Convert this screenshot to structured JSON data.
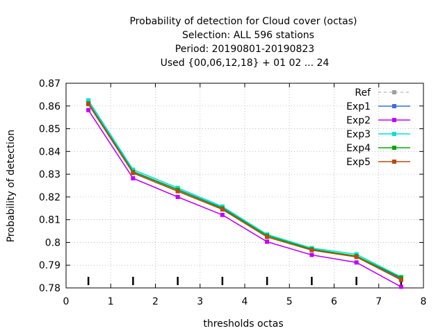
{
  "chart_data": {
    "type": "line",
    "title_lines": [
      "Probability of detection  for Cloud cover (octas)",
      "Selection: ALL    596 stations",
      "Period: 20190801-20190823",
      "Used {00,06,12,18} + 01 02 ... 24"
    ],
    "xlabel": "thresholds octas",
    "ylabel": "Probability of detection",
    "xlim": [
      0,
      8
    ],
    "ylim": [
      0.78,
      0.87
    ],
    "x_ticks": [
      0,
      1,
      2,
      3,
      4,
      5,
      6,
      7,
      8
    ],
    "x_tick_labels": [
      "0",
      "1",
      "2",
      "3",
      "4",
      "5",
      "6",
      "7",
      "8"
    ],
    "y_ticks": [
      0.78,
      0.79,
      0.8,
      0.81,
      0.82,
      0.83,
      0.84,
      0.85,
      0.86,
      0.87
    ],
    "y_tick_labels": [
      "0.78",
      "0.79",
      "0.8",
      "0.81",
      "0.82",
      "0.83",
      "0.84",
      "0.85",
      "0.86",
      "0.87"
    ],
    "grid": true,
    "legend_position": "top-right",
    "x": [
      0.5,
      1.5,
      2.5,
      3.5,
      4.5,
      5.5,
      6.5,
      7.5
    ],
    "series": [
      {
        "name": "Ref",
        "color": "#a0a0a0",
        "dashed": true,
        "values": [
          0.8615,
          0.8312,
          0.8233,
          0.8152,
          0.803,
          0.797,
          0.794,
          0.784
        ]
      },
      {
        "name": "Exp1",
        "color": "#3a6fd8",
        "dashed": false,
        "values": [
          0.8615,
          0.8312,
          0.8233,
          0.8152,
          0.803,
          0.797,
          0.794,
          0.784
        ]
      },
      {
        "name": "Exp2",
        "color": "#c000ff",
        "dashed": false,
        "values": [
          0.8582,
          0.8282,
          0.82,
          0.8121,
          0.8003,
          0.7945,
          0.7912,
          0.7805
        ]
      },
      {
        "name": "Exp3",
        "color": "#00e0d8",
        "dashed": false,
        "values": [
          0.8625,
          0.832,
          0.824,
          0.8158,
          0.8035,
          0.7975,
          0.7948,
          0.7848
        ]
      },
      {
        "name": "Exp4",
        "color": "#00aa00",
        "dashed": false,
        "values": [
          0.8612,
          0.831,
          0.8231,
          0.815,
          0.803,
          0.797,
          0.794,
          0.7845
        ]
      },
      {
        "name": "Exp5",
        "color": "#b84a10",
        "dashed": false,
        "values": [
          0.8608,
          0.8305,
          0.8225,
          0.8145,
          0.8024,
          0.7966,
          0.7936,
          0.7835
        ]
      }
    ]
  }
}
